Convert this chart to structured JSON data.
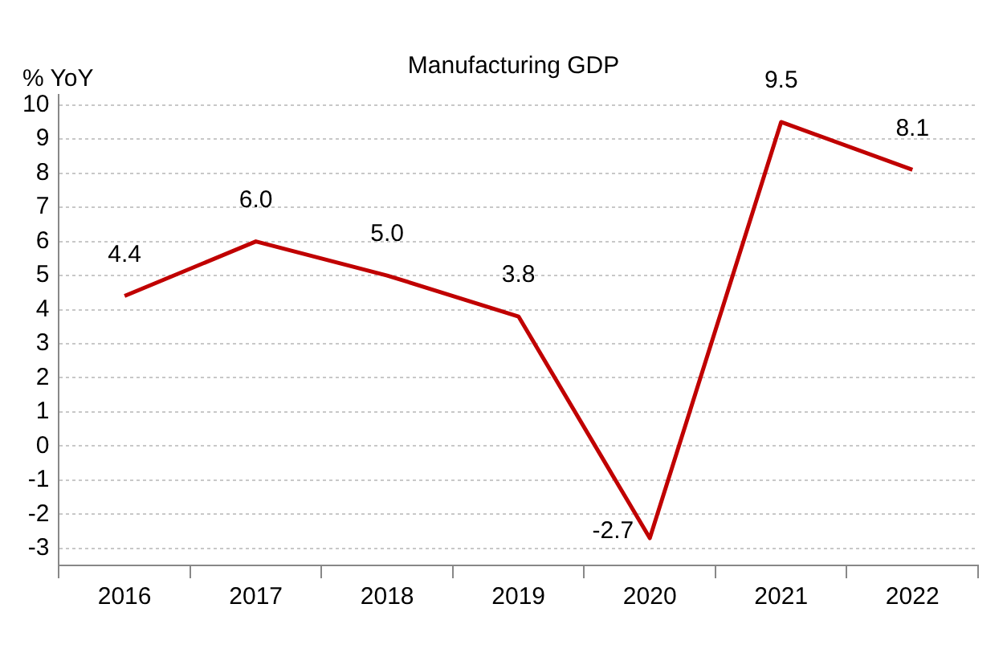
{
  "chart_data": {
    "type": "line",
    "ylabel": "% YoY",
    "categories": [
      "2016",
      "2017",
      "2018",
      "2019",
      "2020",
      "2021",
      "2022"
    ],
    "series": [
      {
        "name": "Manufacturing GDP",
        "color": "#c00000",
        "values": [
          4.4,
          6.0,
          5.0,
          3.8,
          -2.7,
          9.5,
          8.1
        ],
        "value_labels": [
          "4.4",
          "6.0",
          "5.0",
          "3.8",
          "-2.7",
          "9.5",
          "8.1"
        ]
      }
    ],
    "ylim": [
      -3.5,
      10.3
    ],
    "yticks": [
      -3,
      -2,
      -1,
      0,
      1,
      2,
      3,
      4,
      5,
      6,
      7,
      8,
      9,
      10
    ],
    "grid": "y",
    "legend": "top",
    "marker": "none",
    "line_style": "solid"
  }
}
